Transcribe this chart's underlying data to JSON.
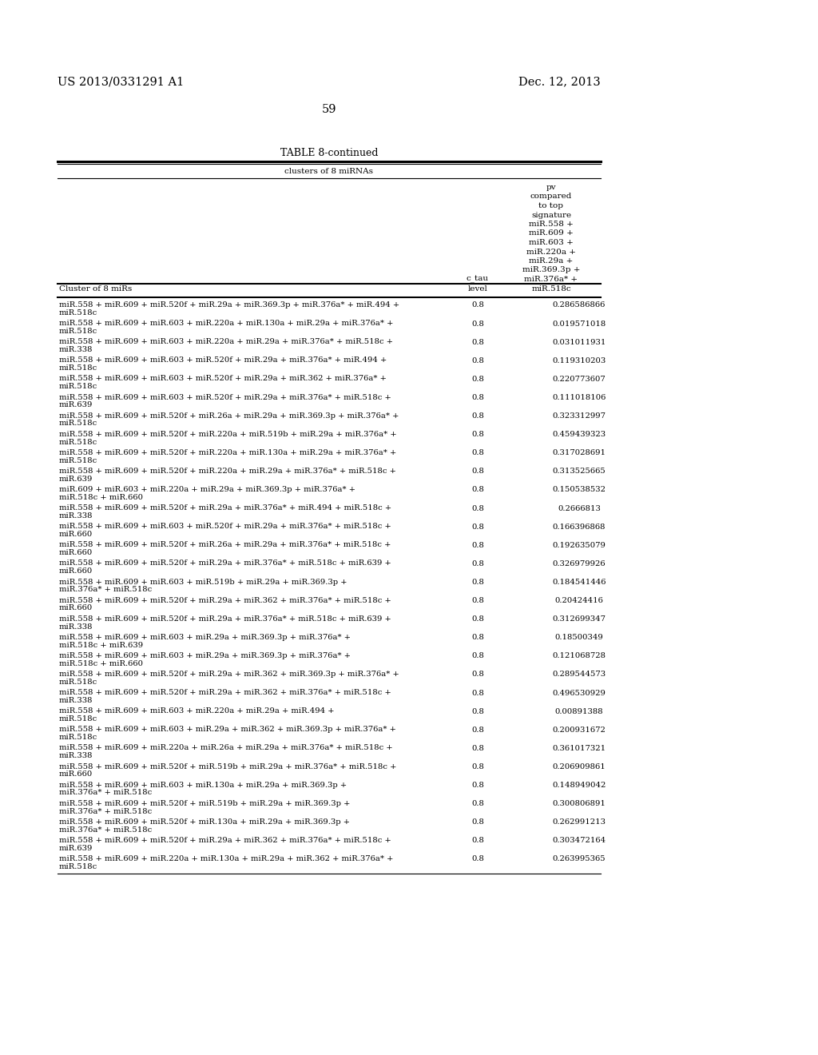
{
  "patent_number": "US 2013/0331291 A1",
  "date": "Dec. 12, 2013",
  "page_number": "59",
  "table_title": "TABLE 8-continued",
  "table_subtitle": "clusters of 8 miRNAs",
  "col1_header": "Cluster of 8 miRs",
  "col2_header_line1": "c_tau",
  "col2_header_line2": "level",
  "col3_header_lines": [
    "pv",
    "compared",
    "to top",
    "signature",
    "miR.558 +",
    "miR.609 +",
    "miR.603 +",
    "miR.220a +",
    "miR.29a +",
    "miR.369.3p +",
    "miR.376a* +",
    "miR.518c"
  ],
  "rows": [
    [
      "miR.558 + miR.609 + miR.520f + miR.29a + miR.369.3p + miR.376a* + miR.494 +",
      "miR.518c",
      "0.8",
      "0.286586866"
    ],
    [
      "miR.558 + miR.609 + miR.603 + miR.220a + miR.130a + miR.29a + miR.376a* +",
      "miR.518c",
      "0.8",
      "0.019571018"
    ],
    [
      "miR.558 + miR.609 + miR.603 + miR.220a + miR.29a + miR.376a* + miR.518c +",
      "miR.338",
      "0.8",
      "0.031011931"
    ],
    [
      "miR.558 + miR.609 + miR.603 + miR.520f + miR.29a + miR.376a* + miR.494 +",
      "miR.518c",
      "0.8",
      "0.119310203"
    ],
    [
      "miR.558 + miR.609 + miR.603 + miR.520f + miR.29a + miR.362 + miR.376a* +",
      "miR.518c",
      "0.8",
      "0.220773607"
    ],
    [
      "miR.558 + miR.609 + miR.603 + miR.520f + miR.29a + miR.376a* + miR.518c +",
      "miR.639",
      "0.8",
      "0.111018106"
    ],
    [
      "miR.558 + miR.609 + miR.520f + miR.26a + miR.29a + miR.369.3p + miR.376a* +",
      "miR.518c",
      "0.8",
      "0.323312997"
    ],
    [
      "miR.558 + miR.609 + miR.520f + miR.220a + miR.519b + miR.29a + miR.376a* +",
      "miR.518c",
      "0.8",
      "0.459439323"
    ],
    [
      "miR.558 + miR.609 + miR.520f + miR.220a + miR.130a + miR.29a + miR.376a* +",
      "miR.518c",
      "0.8",
      "0.317028691"
    ],
    [
      "miR.558 + miR.609 + miR.520f + miR.220a + miR.29a + miR.376a* + miR.518c +",
      "miR.639",
      "0.8",
      "0.313525665"
    ],
    [
      "miR.609 + miR.603 + miR.220a + miR.29a + miR.369.3p + miR.376a* +",
      "miR.518c + miR.660",
      "0.8",
      "0.150538532"
    ],
    [
      "miR.558 + miR.609 + miR.520f + miR.29a + miR.376a* + miR.494 + miR.518c +",
      "miR.338",
      "0.8",
      "0.2666813"
    ],
    [
      "miR.558 + miR.609 + miR.603 + miR.520f + miR.29a + miR.376a* + miR.518c +",
      "miR.660",
      "0.8",
      "0.166396868"
    ],
    [
      "miR.558 + miR.609 + miR.520f + miR.26a + miR.29a + miR.376a* + miR.518c +",
      "miR.660",
      "0.8",
      "0.192635079"
    ],
    [
      "miR.558 + miR.609 + miR.520f + miR.29a + miR.376a* + miR.518c + miR.639 +",
      "miR.660",
      "0.8",
      "0.326979926"
    ],
    [
      "miR.558 + miR.609 + miR.603 + miR.519b + miR.29a + miR.369.3p +",
      "miR.376a* + miR.518c",
      "0.8",
      "0.184541446"
    ],
    [
      "miR.558 + miR.609 + miR.520f + miR.29a + miR.362 + miR.376a* + miR.518c +",
      "miR.660",
      "0.8",
      "0.20424416"
    ],
    [
      "miR.558 + miR.609 + miR.520f + miR.29a + miR.376a* + miR.518c + miR.639 +",
      "miR.338",
      "0.8",
      "0.312699347"
    ],
    [
      "miR.558 + miR.609 + miR.603 + miR.29a + miR.369.3p + miR.376a* +",
      "miR.518c + miR.639",
      "0.8",
      "0.18500349"
    ],
    [
      "miR.558 + miR.609 + miR.603 + miR.29a + miR.369.3p + miR.376a* +",
      "miR.518c + miR.660",
      "0.8",
      "0.121068728"
    ],
    [
      "miR.558 + miR.609 + miR.520f + miR.29a + miR.362 + miR.369.3p + miR.376a* +",
      "miR.518c",
      "0.8",
      "0.289544573"
    ],
    [
      "miR.558 + miR.609 + miR.520f + miR.29a + miR.362 + miR.376a* + miR.518c +",
      "miR.338",
      "0.8",
      "0.496530929"
    ],
    [
      "miR.558 + miR.609 + miR.603 + miR.220a + miR.29a + miR.494 +",
      "miR.518c",
      "0.8",
      "0.00891388"
    ],
    [
      "miR.558 + miR.609 + miR.603 + miR.29a + miR.362 + miR.369.3p + miR.376a* +",
      "miR.518c",
      "0.8",
      "0.200931672"
    ],
    [
      "miR.558 + miR.609 + miR.220a + miR.26a + miR.29a + miR.376a* + miR.518c +",
      "miR.338",
      "0.8",
      "0.361017321"
    ],
    [
      "miR.558 + miR.609 + miR.520f + miR.519b + miR.29a + miR.376a* + miR.518c +",
      "miR.660",
      "0.8",
      "0.206909861"
    ],
    [
      "miR.558 + miR.609 + miR.603 + miR.130a + miR.29a + miR.369.3p +",
      "miR.376a* + miR.518c",
      "0.8",
      "0.148949042"
    ],
    [
      "miR.558 + miR.609 + miR.520f + miR.519b + miR.29a + miR.369.3p +",
      "miR.376a* + miR.518c",
      "0.8",
      "0.300806891"
    ],
    [
      "miR.558 + miR.609 + miR.520f + miR.130a + miR.29a + miR.369.3p +",
      "miR.376a* + miR.518c",
      "0.8",
      "0.262991213"
    ],
    [
      "miR.558 + miR.609 + miR.520f + miR.29a + miR.362 + miR.376a* + miR.518c +",
      "miR.639",
      "0.8",
      "0.303472164"
    ],
    [
      "miR.558 + miR.609 + miR.220a + miR.130a + miR.29a + miR.362 + miR.376a* +",
      "miR.518c",
      "0.8",
      "0.263995365"
    ]
  ],
  "bg_color": "#ffffff",
  "text_color": "#000000",
  "line_color": "#000000"
}
